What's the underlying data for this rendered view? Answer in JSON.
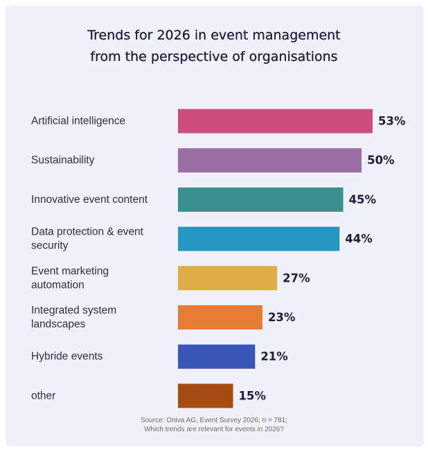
{
  "chart_data": {
    "type": "bar",
    "orientation": "horizontal",
    "title_lines": [
      "Trends for 2026 in event management",
      "from the perspective of organisations"
    ],
    "categories": [
      [
        "Artificial intelligence"
      ],
      [
        "Sustainability"
      ],
      [
        "Innovative event content"
      ],
      [
        "Data protection & event",
        "security"
      ],
      [
        "Event marketing",
        "automation"
      ],
      [
        "Integrated system",
        "landscapes"
      ],
      [
        "Hybride events"
      ],
      [
        "other"
      ]
    ],
    "values": [
      53,
      50,
      45,
      44,
      27,
      23,
      21,
      15
    ],
    "value_labels": [
      "53%",
      "50%",
      "45%",
      "44%",
      "27%",
      "23%",
      "21%",
      "15%"
    ],
    "bar_colors": [
      "#cd4d7f",
      "#9a6fa4",
      "#38918c",
      "#2597c0",
      "#dfad45",
      "#e57d34",
      "#3756b5",
      "#a44c12"
    ],
    "unit": "%",
    "grid": false,
    "legend": "none"
  },
  "source_lines": [
    "Source: Oniva AG, Event Survey 2026; n = 781;",
    "Which trends are relevant for events in 2026?"
  ]
}
